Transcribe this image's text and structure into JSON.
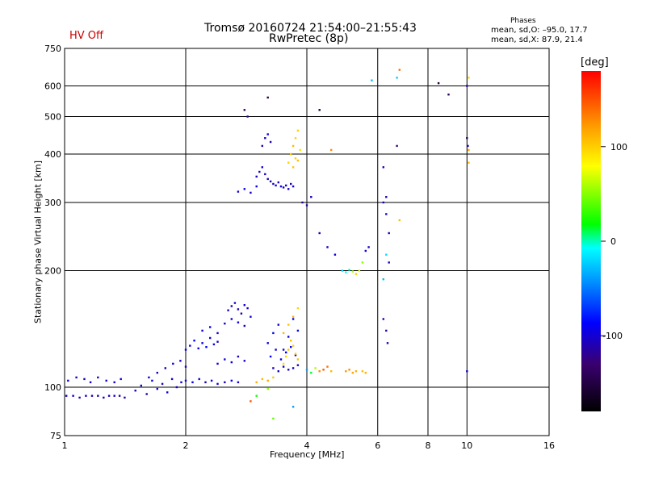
{
  "header": {
    "title_line1": "Tromsø 20160724 21:54:00–21:55:43",
    "title_line2": "RwPretec (8p)",
    "hv_status": "HV Off"
  },
  "phase_box": {
    "heading": "Phases",
    "line_o": "mean, sd,O: –95.0, 17.7",
    "line_x": "mean, sd,X:  87.9, 21.4"
  },
  "colorbar": {
    "unit": "[deg]",
    "ticks": [
      100,
      0,
      -100
    ],
    "min": -180,
    "max": 180
  },
  "chart_data": {
    "type": "scatter",
    "xlabel": "Frequency [MHz]",
    "ylabel": "Stationary phase Virtual Height [km]",
    "xscale": "log",
    "yscale": "log",
    "xlim": [
      1,
      16
    ],
    "ylim": [
      75,
      750
    ],
    "xticks": [
      1,
      2,
      4,
      6,
      8,
      10,
      16
    ],
    "yticks": [
      75,
      100,
      200,
      300,
      400,
      500,
      600,
      750
    ],
    "grid": true,
    "color_by": "phase (deg)",
    "series": [
      {
        "x": [
          1.01,
          1.05,
          1.09,
          1.13,
          1.17,
          1.21,
          1.25,
          1.29,
          1.33,
          1.37,
          1.41
        ],
        "y": [
          95,
          95,
          94,
          95,
          95,
          95,
          94,
          95,
          95,
          95,
          94
        ],
        "phase": [
          -110,
          -108,
          -112,
          -105,
          -110,
          -115,
          -108,
          -110,
          -107,
          -112,
          -110
        ]
      },
      {
        "x": [
          1.02,
          1.07,
          1.12,
          1.16,
          1.21,
          1.27,
          1.33,
          1.38
        ],
        "y": [
          104,
          106,
          105,
          103,
          106,
          104,
          103,
          105
        ],
        "phase": [
          -100,
          -105,
          -110,
          -102,
          -108,
          -104,
          -106,
          -103
        ]
      },
      {
        "x": [
          1.5,
          1.55,
          1.6,
          1.65,
          1.7,
          1.75,
          1.8,
          1.85,
          1.9,
          1.95
        ],
        "y": [
          98,
          101,
          96,
          104,
          99,
          102,
          97,
          105,
          100,
          103
        ],
        "phase": [
          -110,
          -95,
          -115,
          -100,
          -108,
          -112,
          -98,
          -105,
          -110,
          -102
        ]
      },
      {
        "x": [
          1.62,
          1.7,
          1.78,
          1.86,
          1.94,
          2.0
        ],
        "y": [
          106,
          109,
          112,
          115,
          117,
          113
        ],
        "phase": [
          -100,
          -105,
          -110,
          -102,
          -108,
          -104
        ]
      },
      {
        "x": [
          2.0,
          2.08,
          2.16,
          2.24,
          2.32,
          2.4,
          2.5,
          2.6,
          2.7
        ],
        "y": [
          104,
          103,
          105,
          103,
          104,
          102,
          103,
          104,
          103
        ],
        "phase": [
          -100,
          -95,
          -105,
          -110,
          -98,
          -102,
          -108,
          -95,
          -100
        ]
      },
      {
        "x": [
          2.0,
          2.05,
          2.1,
          2.15,
          2.2,
          2.25,
          2.3,
          2.35,
          2.4
        ],
        "y": [
          125,
          128,
          132,
          126,
          130,
          127,
          134,
          129,
          131
        ],
        "phase": [
          -95,
          -100,
          -92,
          -105,
          -98,
          -90,
          -102,
          -96,
          -100
        ]
      },
      {
        "x": [
          2.2,
          2.3,
          2.4,
          2.5,
          2.6,
          2.7,
          2.8,
          2.9
        ],
        "y": [
          140,
          143,
          138,
          146,
          150,
          147,
          144,
          152
        ],
        "phase": [
          -100,
          -95,
          -105,
          -98,
          -102,
          -96,
          -110,
          -100
        ]
      },
      {
        "x": [
          2.55,
          2.6,
          2.65,
          2.7,
          2.75,
          2.8,
          2.85
        ],
        "y": [
          158,
          162,
          165,
          159,
          155,
          163,
          160
        ],
        "phase": [
          -110,
          -105,
          -100,
          -108,
          -112,
          -103,
          -106
        ]
      },
      {
        "x": [
          2.4,
          2.5,
          2.6,
          2.7,
          2.8
        ],
        "y": [
          115,
          118,
          116,
          120,
          117
        ],
        "phase": [
          -105,
          -100,
          -95,
          -110,
          -102
        ]
      },
      {
        "x": [
          3.2,
          3.3,
          3.4,
          3.5,
          3.6,
          3.7,
          3.8
        ],
        "y": [
          130,
          138,
          145,
          125,
          135,
          150,
          140
        ],
        "phase": [
          -100,
          -95,
          -105,
          -98,
          -102,
          -96,
          -100
        ]
      },
      {
        "x": [
          3.3,
          3.4,
          3.5,
          3.6,
          3.7,
          3.8
        ],
        "y": [
          112,
          110,
          113,
          111,
          112,
          114
        ],
        "phase": [
          -110,
          -105,
          -100,
          -108,
          -104,
          -106
        ]
      },
      {
        "x": [
          3.25,
          3.35,
          3.45,
          3.55,
          3.65,
          3.75
        ],
        "y": [
          120,
          125,
          118,
          123,
          127,
          121
        ],
        "phase": [
          -90,
          -95,
          -100,
          -92,
          -88,
          -96
        ]
      },
      {
        "x": [
          3.5,
          3.6,
          3.7,
          3.8
        ],
        "y": [
          138,
          145,
          152,
          160
        ],
        "phase": [
          110,
          105,
          115,
          100
        ]
      },
      {
        "x": [
          3.0,
          3.1,
          3.2,
          3.3
        ],
        "y": [
          103,
          105,
          104,
          106
        ],
        "phase": [
          115,
          110,
          120,
          105
        ]
      },
      {
        "x": [
          3.5,
          3.55,
          3.6,
          3.65,
          3.7,
          3.75,
          3.8
        ],
        "y": [
          115,
          120,
          125,
          132,
          128,
          122,
          118
        ],
        "phase": [
          95,
          100,
          105,
          110,
          98,
          102,
          108
        ]
      },
      {
        "x": [
          4.0,
          4.1,
          4.2,
          4.3,
          4.4,
          4.5,
          4.6
        ],
        "y": [
          111,
          109,
          112,
          110,
          111,
          113,
          110
        ],
        "phase": [
          -40,
          10,
          60,
          130,
          150,
          140,
          110
        ]
      },
      {
        "x": [
          5.0,
          5.1,
          5.2,
          5.3
        ],
        "y": [
          110,
          111,
          109,
          110
        ],
        "phase": [
          125,
          130,
          120,
          115
        ]
      },
      {
        "x": [
          5.5,
          5.6
        ],
        "y": [
          110,
          109
        ],
        "phase": [
          110,
          115
        ]
      },
      {
        "x": [
          3.0,
          3.05,
          3.1,
          3.15,
          3.2,
          3.25,
          3.3,
          3.35,
          3.4,
          3.45,
          3.5,
          3.55,
          3.6,
          3.65,
          3.7
        ],
        "y": [
          350,
          360,
          370,
          355,
          345,
          340,
          335,
          332,
          338,
          330,
          328,
          332,
          325,
          335,
          330
        ],
        "phase": [
          -110,
          -105,
          -100,
          -108,
          -112,
          -103,
          -106,
          -100,
          -110,
          -95,
          -105,
          -102,
          -108,
          -104,
          -106
        ]
      },
      {
        "x": [
          2.7,
          2.8,
          2.9,
          3.0
        ],
        "y": [
          320,
          325,
          318,
          330
        ],
        "phase": [
          -100,
          -95,
          -105,
          -98
        ]
      },
      {
        "x": [
          3.1,
          3.15,
          3.2,
          3.25
        ],
        "y": [
          420,
          440,
          450,
          430
        ],
        "phase": [
          -110,
          -105,
          -100,
          -108
        ]
      },
      {
        "x": [
          3.6,
          3.65,
          3.7,
          3.75,
          3.8,
          3.85
        ],
        "y": [
          380,
          400,
          420,
          440,
          460,
          410
        ],
        "phase": [
          100,
          105,
          110,
          98,
          102,
          95
        ]
      },
      {
        "x": [
          3.7,
          3.75,
          3.8
        ],
        "y": [
          370,
          390,
          385
        ],
        "phase": [
          105,
          100,
          110
        ]
      },
      {
        "x": [
          3.9,
          4.0,
          4.1
        ],
        "y": [
          300,
          295,
          310
        ],
        "phase": [
          -120,
          -115,
          -110
        ]
      },
      {
        "x": [
          4.3,
          4.5,
          4.7
        ],
        "y": [
          250,
          230,
          220
        ],
        "phase": [
          -110,
          -105,
          -100
        ]
      },
      {
        "x": [
          4.9,
          5.0,
          5.1,
          5.2,
          5.3,
          5.4,
          5.5
        ],
        "y": [
          200,
          198,
          201,
          199,
          196,
          200,
          210
        ],
        "phase": [
          -20,
          -10,
          -5,
          60,
          100,
          70,
          50
        ]
      },
      {
        "x": [
          5.6,
          5.7
        ],
        "y": [
          225,
          230
        ],
        "phase": [
          -100,
          -105
        ]
      },
      {
        "x": [
          2.8,
          2.85
        ],
        "y": [
          520,
          500
        ],
        "phase": [
          -140,
          -120
        ]
      },
      {
        "x": [
          3.2,
          4.3
        ],
        "y": [
          560,
          520
        ],
        "phase": [
          -150,
          -160
        ]
      },
      {
        "x": [
          5.8,
          6.7,
          6.8
        ],
        "y": [
          620,
          630,
          660
        ],
        "phase": [
          -30,
          -25,
          140
        ]
      },
      {
        "x": [
          8.5,
          9.0,
          10.0,
          10.1
        ],
        "y": [
          610,
          570,
          600,
          630
        ],
        "phase": [
          -150,
          -140,
          -120,
          100
        ]
      },
      {
        "x": [
          6.2,
          6.3,
          6.2,
          6.3,
          6.4
        ],
        "y": [
          370,
          310,
          300,
          280,
          250
        ],
        "phase": [
          -110,
          -120,
          -100,
          -105,
          -115
        ]
      },
      {
        "x": [
          6.3,
          6.4,
          6.2
        ],
        "y": [
          220,
          210,
          190
        ],
        "phase": [
          -20,
          -110,
          -30
        ]
      },
      {
        "x": [
          6.2,
          6.3,
          6.35,
          6.7
        ],
        "y": [
          150,
          140,
          130,
          420
        ],
        "phase": [
          -110,
          -120,
          -115,
          -130
        ]
      },
      {
        "x": [
          10.0,
          10.05,
          10.1,
          10.1,
          10.0
        ],
        "y": [
          440,
          420,
          410,
          380,
          110
        ],
        "phase": [
          -140,
          -110,
          120,
          110,
          -100
        ]
      },
      {
        "x": [
          6.8,
          4.6
        ],
        "y": [
          270,
          410
        ],
        "phase": [
          110,
          130
        ]
      },
      {
        "x": [
          3.3,
          3.7,
          3.2,
          3.0,
          2.9
        ],
        "y": [
          83,
          89,
          99,
          95,
          92
        ],
        "phase": [
          40,
          -40,
          50,
          20,
          150
        ]
      }
    ]
  }
}
